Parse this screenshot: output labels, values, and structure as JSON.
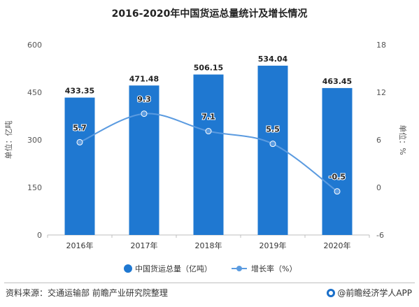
{
  "chart_data": {
    "type": "bar",
    "title": "2016-2020年中国货运总量统计及增长情况",
    "categories": [
      "2016年",
      "2017年",
      "2018年",
      "2019年",
      "2020年"
    ],
    "series": [
      {
        "name": "中国货运总量（亿吨）",
        "type": "bar",
        "axis": "left",
        "values": [
          433.35,
          471.48,
          506.15,
          534.04,
          463.45
        ],
        "labels": [
          "433.35",
          "471.48",
          "506.15",
          "534.04",
          "463.45"
        ],
        "color": "#1f78d1"
      },
      {
        "name": "增长率（%）",
        "type": "line",
        "axis": "right",
        "values": [
          5.7,
          9.3,
          7.1,
          5.5,
          -0.5
        ],
        "labels": [
          "5.7",
          "9.3",
          "7.1",
          "5.5",
          "-0.5"
        ],
        "color": "#5b9be0"
      }
    ],
    "ylabel": "单位：亿吨",
    "y2label": "单位：%",
    "ylim": [
      0,
      600
    ],
    "y2lim": [
      -6,
      18
    ],
    "yticks": [
      0,
      150,
      300,
      450,
      600
    ],
    "yticks_labels": [
      "0",
      "150",
      "300",
      "450",
      "600"
    ],
    "y2ticks": [
      -6,
      0,
      6,
      12,
      18
    ],
    "y2ticks_labels": [
      "-6",
      "0",
      "6",
      "12",
      "18"
    ],
    "grid": false,
    "legend": "bottom"
  },
  "footer": {
    "source": "资料来源：交通运输部 前瞻产业研究院整理",
    "brand": "@前瞻经济学人APP"
  }
}
